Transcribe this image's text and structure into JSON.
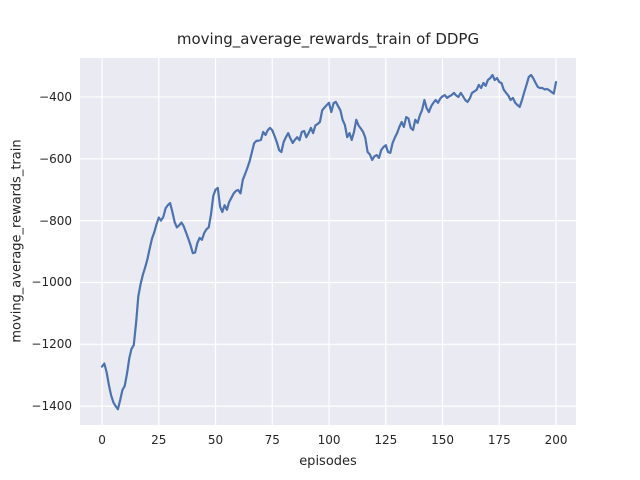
{
  "figure": {
    "title": "moving_average_rewards_train of DDPG",
    "xlabel": "episodes",
    "ylabel": "moving_average_rewards_train",
    "x_ticks": [
      "0",
      "25",
      "50",
      "75",
      "100",
      "125",
      "150",
      "175",
      "200"
    ],
    "y_ticks": [
      "−400",
      "−600",
      "−800",
      "−1000",
      "−1200",
      "−1400"
    ],
    "colors": {
      "line": "#4C72B0",
      "axes_bg": "#EAEAF2",
      "grid": "#FFFFFF",
      "fig_bg": "#FFFFFF",
      "text": "#262626"
    }
  },
  "chart_data": {
    "type": "line",
    "title": "moving_average_rewards_train of DDPG",
    "xlabel": "episodes",
    "ylabel": "moving_average_rewards_train",
    "grid": true,
    "legend_position": "none",
    "xlim": [
      -9.7,
      208.8
    ],
    "ylim": [
      -1461,
      -274
    ],
    "x_tick_values": [
      0,
      25,
      50,
      75,
      100,
      125,
      150,
      175,
      200
    ],
    "y_tick_values": [
      -400,
      -600,
      -800,
      -1000,
      -1200,
      -1400
    ],
    "series": [
      {
        "name": "moving_average_rewards_train",
        "color": "#4C72B0",
        "x": [
          0,
          1,
          2,
          3,
          4,
          5,
          6,
          7,
          8,
          9,
          10,
          11,
          12,
          13,
          14,
          15,
          16,
          17,
          18,
          19,
          20,
          21,
          22,
          23,
          24,
          25,
          26,
          27,
          28,
          29,
          30,
          31,
          32,
          33,
          34,
          35,
          36,
          37,
          38,
          39,
          40,
          41,
          42,
          43,
          44,
          45,
          46,
          47,
          48,
          49,
          50,
          51,
          52,
          53,
          54,
          55,
          56,
          57,
          58,
          59,
          60,
          61,
          62,
          63,
          64,
          65,
          66,
          67,
          68,
          69,
          70,
          71,
          72,
          73,
          74,
          75,
          76,
          77,
          78,
          79,
          80,
          81,
          82,
          83,
          84,
          85,
          86,
          87,
          88,
          89,
          90,
          91,
          92,
          93,
          94,
          95,
          96,
          97,
          98,
          99,
          100,
          101,
          102,
          103,
          104,
          105,
          106,
          107,
          108,
          109,
          110,
          111,
          112,
          113,
          114,
          115,
          116,
          117,
          118,
          119,
          120,
          121,
          122,
          123,
          124,
          125,
          126,
          127,
          128,
          129,
          130,
          131,
          132,
          133,
          134,
          135,
          136,
          137,
          138,
          139,
          140,
          141,
          142,
          143,
          144,
          145,
          146,
          147,
          148,
          149,
          150,
          151,
          152,
          153,
          154,
          155,
          156,
          157,
          158,
          159,
          160,
          161,
          162,
          163,
          164,
          165,
          166,
          167,
          168,
          169,
          170,
          171,
          172,
          173,
          174,
          175,
          176,
          177,
          178,
          179,
          180,
          181,
          182,
          183,
          184,
          185,
          186,
          187,
          188,
          189,
          190,
          191,
          192,
          193,
          194,
          195,
          196,
          197,
          198,
          199,
          200
        ],
        "y": [
          -1272,
          -1262,
          -1290,
          -1330,
          -1365,
          -1388,
          -1400,
          -1410,
          -1380,
          -1348,
          -1335,
          -1295,
          -1245,
          -1215,
          -1202,
          -1130,
          -1045,
          -1005,
          -975,
          -952,
          -925,
          -890,
          -858,
          -838,
          -812,
          -790,
          -800,
          -788,
          -760,
          -750,
          -743,
          -772,
          -805,
          -822,
          -815,
          -806,
          -818,
          -838,
          -858,
          -880,
          -905,
          -903,
          -872,
          -856,
          -862,
          -840,
          -828,
          -822,
          -780,
          -720,
          -700,
          -694,
          -755,
          -772,
          -750,
          -765,
          -740,
          -726,
          -712,
          -704,
          -701,
          -712,
          -668,
          -650,
          -630,
          -608,
          -580,
          -550,
          -542,
          -541,
          -539,
          -513,
          -523,
          -508,
          -500,
          -508,
          -526,
          -546,
          -572,
          -578,
          -546,
          -530,
          -517,
          -534,
          -549,
          -538,
          -530,
          -540,
          -513,
          -510,
          -530,
          -517,
          -500,
          -517,
          -492,
          -487,
          -481,
          -443,
          -434,
          -426,
          -419,
          -449,
          -420,
          -416,
          -430,
          -443,
          -474,
          -491,
          -530,
          -517,
          -539,
          -513,
          -474,
          -492,
          -502,
          -513,
          -532,
          -578,
          -586,
          -604,
          -592,
          -588,
          -597,
          -572,
          -562,
          -556,
          -578,
          -581,
          -549,
          -531,
          -517,
          -497,
          -481,
          -497,
          -465,
          -470,
          -500,
          -507,
          -474,
          -484,
          -460,
          -442,
          -410,
          -436,
          -449,
          -430,
          -419,
          -410,
          -419,
          -405,
          -398,
          -394,
          -403,
          -398,
          -394,
          -387,
          -395,
          -400,
          -387,
          -398,
          -410,
          -416,
          -405,
          -387,
          -382,
          -377,
          -361,
          -371,
          -355,
          -364,
          -345,
          -339,
          -329,
          -345,
          -339,
          -352,
          -355,
          -377,
          -387,
          -396,
          -410,
          -403,
          -419,
          -426,
          -432,
          -410,
          -385,
          -361,
          -335,
          -329,
          -340,
          -355,
          -368,
          -371,
          -371,
          -376,
          -374,
          -378,
          -384,
          -389,
          -352
        ]
      }
    ]
  }
}
